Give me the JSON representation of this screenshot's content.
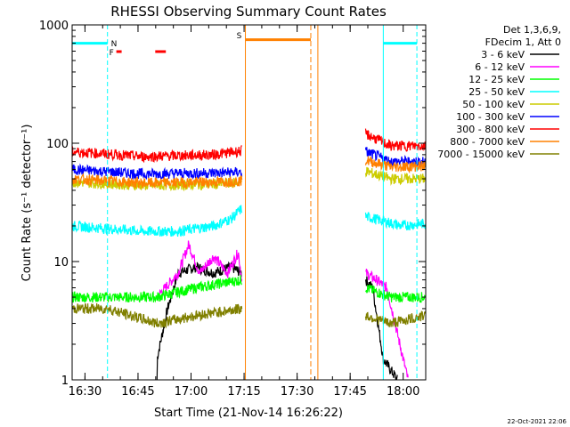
{
  "chart_data": {
    "type": "line",
    "title": "RHESSI Observing Summary Count Rates",
    "xlabel": "Start Time (21-Nov-14 16:26:22)",
    "ylabel": "Count Rate (s⁻¹ detector⁻¹)",
    "yscale": "log",
    "ylim": [
      1,
      1000
    ],
    "xlim_minutes_after_1626": [
      0,
      100
    ],
    "x_ticks": [
      "16:30",
      "16:45",
      "17:00",
      "17:15",
      "17:30",
      "17:45",
      "18:00"
    ],
    "y_ticks": [
      "1",
      "10",
      "100",
      "1000"
    ],
    "legend_header": [
      "Det 1,3,6,9,",
      "FDecim 1, Att 0"
    ],
    "legend_position": "right",
    "series": [
      {
        "name": "3 - 6 keV",
        "color": "#000000",
        "segments": [
          [
            [
              24,
              1
            ],
            [
              24,
              1.5
            ],
            [
              27,
              4
            ],
            [
              30,
              8
            ],
            [
              35,
              9
            ],
            [
              40,
              8
            ],
            [
              45,
              9
            ],
            [
              48,
              8
            ]
          ],
          [
            [
              83,
              7
            ],
            [
              85,
              6
            ],
            [
              88,
              1.5
            ],
            [
              92,
              1
            ]
          ]
        ]
      },
      {
        "name": "6 - 12 keV",
        "color": "#ff00ff",
        "segments": [
          [
            [
              24,
              5
            ],
            [
              30,
              8
            ],
            [
              33,
              14
            ],
            [
              36,
              8
            ],
            [
              40,
              11
            ],
            [
              44,
              8
            ],
            [
              47,
              12
            ],
            [
              48,
              7
            ]
          ],
          [
            [
              83,
              8
            ],
            [
              86,
              7
            ],
            [
              89,
              6
            ],
            [
              95,
              1
            ]
          ]
        ]
      },
      {
        "name": "12 - 25 keV",
        "color": "#00ff00",
        "segments": [
          [
            [
              0,
              5
            ],
            [
              10,
              5
            ],
            [
              24,
              5
            ],
            [
              35,
              6
            ],
            [
              48,
              7
            ]
          ],
          [
            [
              83,
              6
            ],
            [
              90,
              5
            ],
            [
              100,
              5
            ]
          ]
        ]
      },
      {
        "name": "25 - 50 keV",
        "color": "#00ffff",
        "segments": [
          [
            [
              0,
              20
            ],
            [
              10,
              19
            ],
            [
              20,
              18
            ],
            [
              30,
              18
            ],
            [
              40,
              20
            ],
            [
              45,
              23
            ],
            [
              48,
              28
            ]
          ],
          [
            [
              83,
              24
            ],
            [
              88,
              22
            ],
            [
              93,
              20
            ],
            [
              100,
              21
            ]
          ]
        ]
      },
      {
        "name": "50 - 100 keV",
        "color": "#cccc00",
        "segments": [
          [
            [
              0,
              47
            ],
            [
              20,
              44
            ],
            [
              40,
              45
            ],
            [
              48,
              47
            ]
          ],
          [
            [
              83,
              58
            ],
            [
              90,
              50
            ],
            [
              100,
              50
            ]
          ]
        ]
      },
      {
        "name": "100 - 300 keV",
        "color": "#0000ff",
        "segments": [
          [
            [
              0,
              60
            ],
            [
              20,
              55
            ],
            [
              40,
              56
            ],
            [
              48,
              57
            ]
          ],
          [
            [
              83,
              85
            ],
            [
              90,
              70
            ],
            [
              100,
              70
            ]
          ]
        ]
      },
      {
        "name": "300 - 800 keV",
        "color": "#ff0000",
        "segments": [
          [
            [
              0,
              85
            ],
            [
              20,
              77
            ],
            [
              40,
              80
            ],
            [
              48,
              86
            ]
          ],
          [
            [
              83,
              120
            ],
            [
              90,
              95
            ],
            [
              100,
              95
            ]
          ]
        ]
      },
      {
        "name": "800 - 7000 keV",
        "color": "#ff8000",
        "segments": [
          [
            [
              0,
              50
            ],
            [
              20,
              46
            ],
            [
              40,
              47
            ],
            [
              48,
              48
            ]
          ],
          [
            [
              83,
              72
            ],
            [
              90,
              63
            ],
            [
              100,
              64
            ]
          ]
        ]
      },
      {
        "name": "7000 - 15000 keV",
        "color": "#808000",
        "segments": [
          [
            [
              0,
              4
            ],
            [
              10,
              4
            ],
            [
              24,
              3
            ],
            [
              35,
              3.5
            ],
            [
              48,
              4
            ]
          ],
          [
            [
              83,
              3.5
            ],
            [
              90,
              3
            ],
            [
              100,
              3.5
            ]
          ]
        ]
      }
    ],
    "annotations": {
      "night_label": "N",
      "flare_label": "F",
      "saa_label": "S",
      "night_color": "#00ffff",
      "saa_color": "#ff8000",
      "flare_color": "#ff0000"
    },
    "timestamp": "22-Oct-2021 22:06"
  }
}
